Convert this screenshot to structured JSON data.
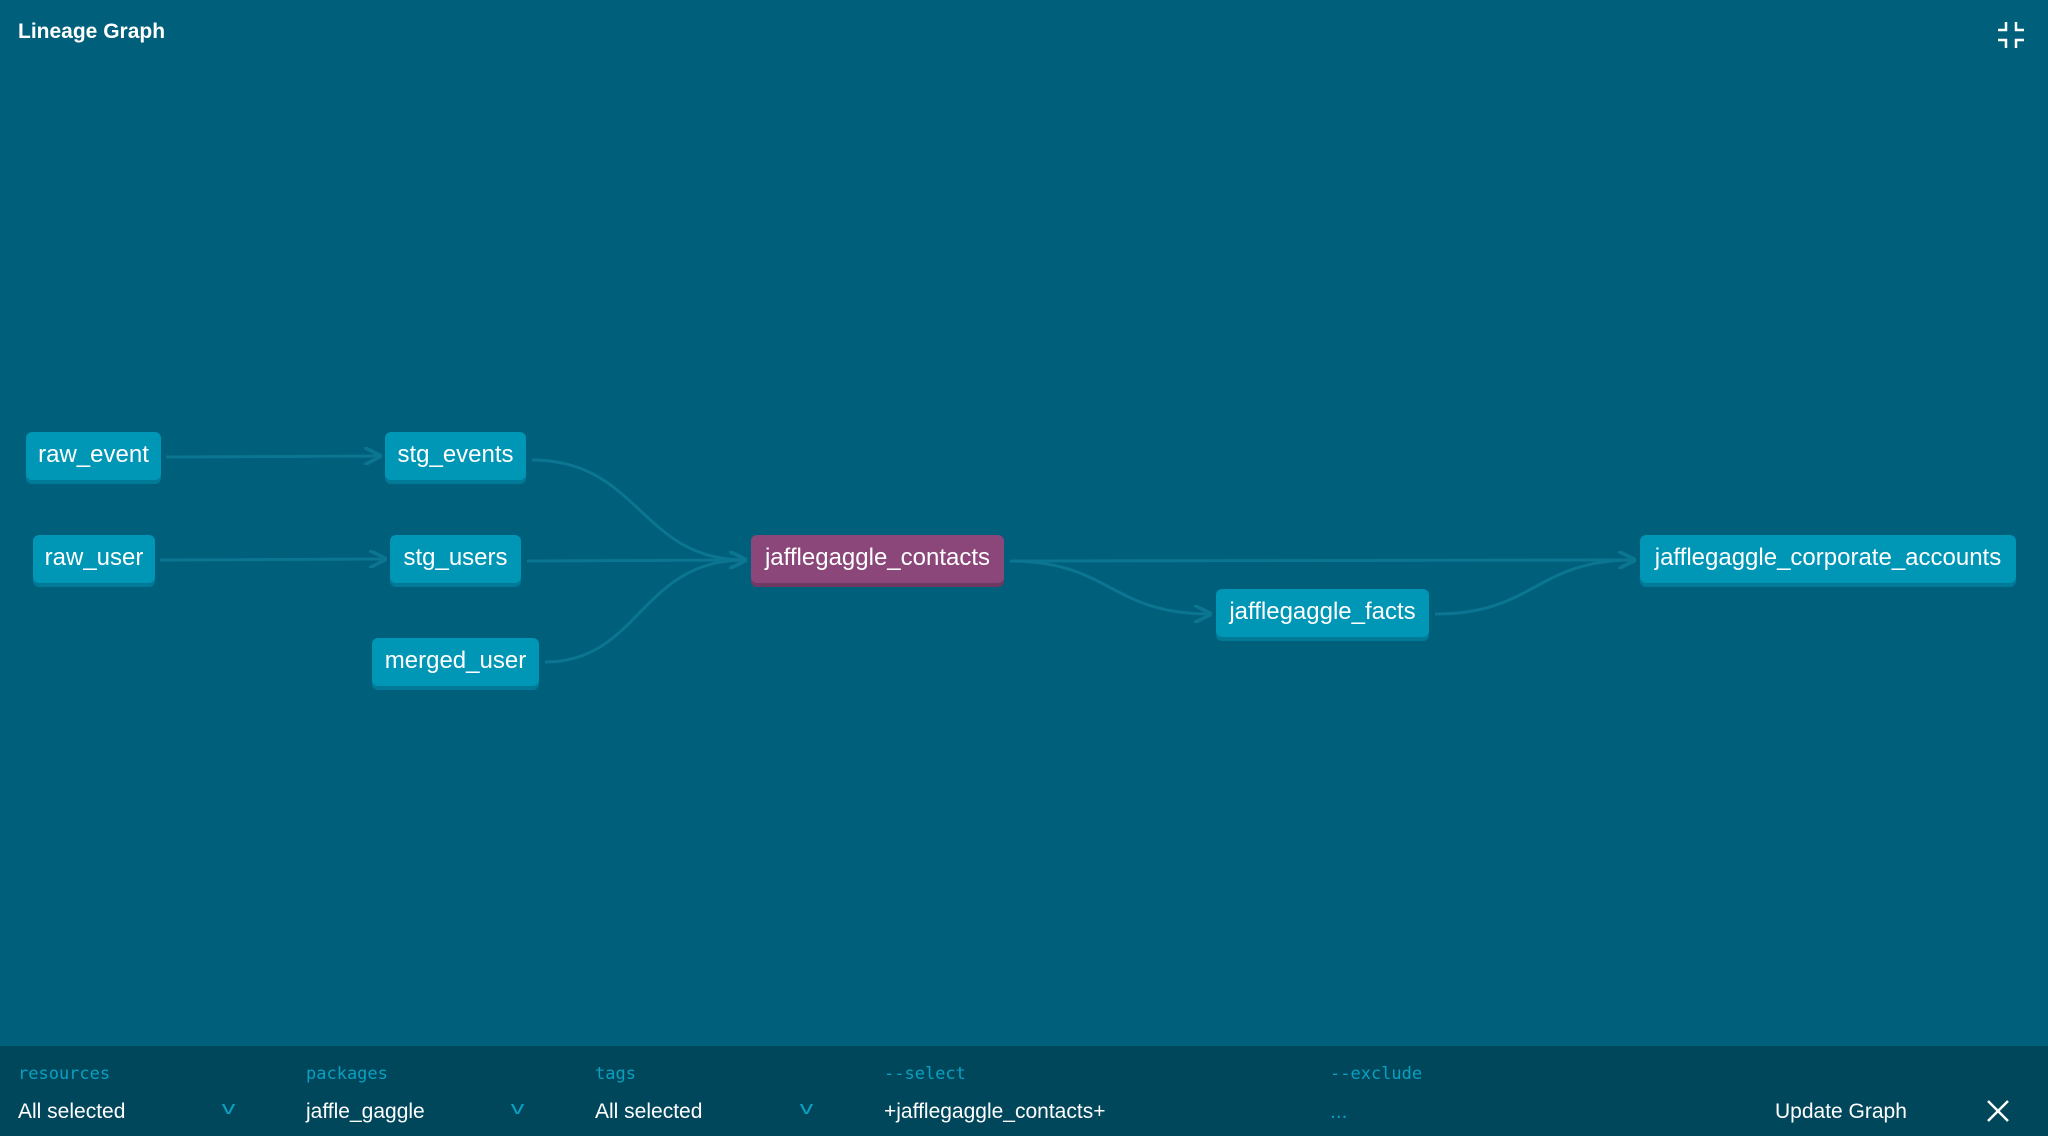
{
  "header": {
    "title": "Lineage Graph",
    "fullscreen_icon": "collapse-icon"
  },
  "graph": {
    "nodes": [
      {
        "id": "raw_event",
        "label": "raw_event"
      },
      {
        "id": "stg_events",
        "label": "stg_events"
      },
      {
        "id": "raw_user",
        "label": "raw_user"
      },
      {
        "id": "stg_users",
        "label": "stg_users"
      },
      {
        "id": "merged_user",
        "label": "merged_user"
      },
      {
        "id": "jafflegaggle_contacts",
        "label": "jafflegaggle_contacts",
        "selected": true
      },
      {
        "id": "jafflegaggle_facts",
        "label": "jafflegaggle_facts"
      },
      {
        "id": "jafflegaggle_corporate_accounts",
        "label": "jafflegaggle_corporate_accounts"
      }
    ],
    "edges": [
      [
        "raw_event",
        "stg_events"
      ],
      [
        "raw_user",
        "stg_users"
      ],
      [
        "stg_events",
        "jafflegaggle_contacts"
      ],
      [
        "stg_users",
        "jafflegaggle_contacts"
      ],
      [
        "merged_user",
        "jafflegaggle_contacts"
      ],
      [
        "jafflegaggle_contacts",
        "jafflegaggle_facts"
      ],
      [
        "jafflegaggle_contacts",
        "jafflegaggle_corporate_accounts"
      ],
      [
        "jafflegaggle_facts",
        "jafflegaggle_corporate_accounts"
      ]
    ],
    "colors": {
      "node": "#0096b5",
      "selected": "#8b477a",
      "edge": "#0b7592",
      "background": "#005f7a"
    }
  },
  "filters": {
    "resources": {
      "label": "resources",
      "value": "All selected"
    },
    "packages": {
      "label": "packages",
      "value": "jaffle_gaggle"
    },
    "tags": {
      "label": "tags",
      "value": "All selected"
    },
    "select": {
      "label": "--select",
      "value": "+jafflegaggle_contacts+"
    },
    "exclude": {
      "label": "--exclude",
      "placeholder": "..."
    },
    "update_label": "Update Graph"
  }
}
